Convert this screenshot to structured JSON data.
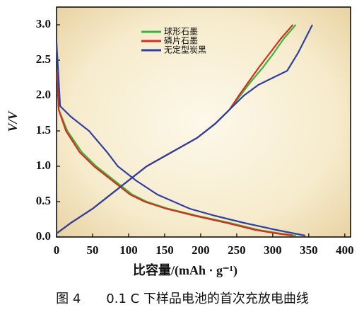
{
  "chart_data": {
    "type": "line",
    "x_label": "比容量/(mAh · g⁻¹)",
    "y_label": "V/V",
    "caption": "图 4　　0.1 C 下样品电池的首次充放电曲线",
    "xlim": [
      0,
      408
    ],
    "ylim": [
      0,
      3.25
    ],
    "xticks": [
      0,
      50,
      100,
      150,
      200,
      250,
      300,
      350,
      400
    ],
    "yticks": [
      {
        "value": 0,
        "label": "0.0"
      },
      {
        "value": 0.5,
        "label": "0.5"
      },
      {
        "value": 1,
        "label": "1.0"
      },
      {
        "value": 1.5,
        "label": "1.5"
      },
      {
        "value": 2,
        "label": "2.0"
      },
      {
        "value": 2.5,
        "label": "2.5"
      },
      {
        "value": 3,
        "label": "3.0"
      }
    ],
    "series": [
      {
        "name": "球形石墨",
        "color": "#3cb43c",
        "curves": [
          {
            "x": [
              1,
              3,
              15,
              35,
              55,
              80,
              105,
              125,
              155,
              195,
              240,
              280,
              310,
              332
            ],
            "values": [
              2.3,
              1.8,
              1.5,
              1.2,
              1.0,
              0.8,
              0.6,
              0.5,
              0.4,
              0.3,
              0.2,
              0.1,
              0.05,
              0.02
            ]
          },
          {
            "x": [
              0,
              20,
              50,
              75,
              100,
              125,
              160,
              195,
              220,
              240,
              255,
              270,
              285,
              300,
              315,
              332
            ],
            "values": [
              0.05,
              0.2,
              0.4,
              0.6,
              0.8,
              1.0,
              1.2,
              1.4,
              1.6,
              1.8,
              2.0,
              2.2,
              2.38,
              2.58,
              2.8,
              3.0
            ]
          }
        ]
      },
      {
        "name": "磷片石墨",
        "color": "#d03020",
        "curves": [
          {
            "x": [
              1,
              3,
              13,
              32,
              52,
              77,
              102,
              122,
              152,
              192,
              236,
              276,
              306,
              328
            ],
            "values": [
              2.32,
              1.8,
              1.5,
              1.2,
              1.0,
              0.8,
              0.6,
              0.5,
              0.4,
              0.3,
              0.2,
              0.1,
              0.05,
              0.02
            ]
          },
          {
            "x": [
              0,
              20,
              50,
              75,
              100,
              125,
              160,
              195,
              220,
              240,
              253,
              267,
              281,
              296,
              311,
              328
            ],
            "values": [
              0.05,
              0.2,
              0.4,
              0.6,
              0.8,
              1.0,
              1.2,
              1.4,
              1.6,
              1.8,
              2.0,
              2.2,
              2.4,
              2.6,
              2.8,
              3.0
            ]
          }
        ]
      },
      {
        "name": "无定型炭黑",
        "color": "#3040a0",
        "curves": [
          {
            "x": [
              0,
              5,
              20,
              45,
              70,
              85,
              110,
              140,
              185,
              220,
              260,
              305,
              330,
              345
            ],
            "values": [
              2.75,
              1.85,
              1.7,
              1.5,
              1.2,
              1.0,
              0.8,
              0.6,
              0.4,
              0.3,
              0.2,
              0.1,
              0.05,
              0.02
            ]
          },
          {
            "x": [
              0,
              20,
              50,
              75,
              100,
              125,
              160,
              195,
              220,
              240,
              260,
              280,
              300,
              320,
              335,
              345,
              355
            ],
            "values": [
              0.05,
              0.2,
              0.4,
              0.6,
              0.8,
              1.0,
              1.2,
              1.4,
              1.6,
              1.8,
              2.0,
              2.15,
              2.25,
              2.35,
              2.6,
              2.8,
              3.0
            ]
          }
        ]
      }
    ]
  }
}
